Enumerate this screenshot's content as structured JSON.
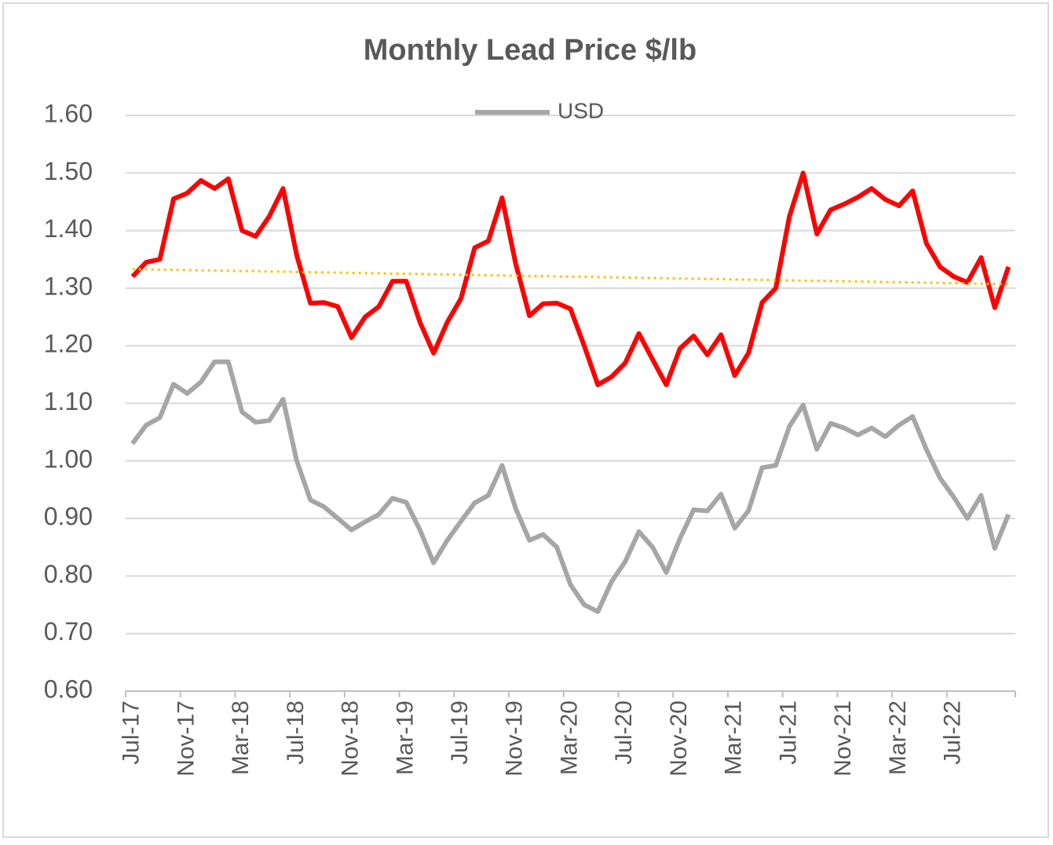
{
  "chart_data": {
    "type": "line",
    "title": "Monthly Lead Price $/lb",
    "categories": [
      "Jul-17",
      null,
      null,
      null,
      "Nov-17",
      null,
      null,
      null,
      "Mar-18",
      null,
      null,
      null,
      "Jul-18",
      null,
      null,
      null,
      "Nov-18",
      null,
      null,
      null,
      "Mar-19",
      null,
      null,
      null,
      "Jul-19",
      null,
      null,
      null,
      "Nov-19",
      null,
      null,
      null,
      "Mar-20",
      null,
      null,
      null,
      "Jul-20",
      null,
      null,
      null,
      "Nov-20",
      null,
      null,
      null,
      "Mar-21",
      null,
      null,
      null,
      "Jul-21",
      null,
      null,
      null,
      "Nov-21",
      null,
      null,
      null,
      "Mar-22",
      null,
      null,
      null,
      "Jul-22",
      null,
      null,
      null,
      null
    ],
    "series": [
      {
        "color": "#ff0000",
        "values": [
          1.32,
          1.345,
          1.35,
          1.455,
          1.465,
          1.487,
          1.473,
          1.49,
          1.4,
          1.39,
          1.425,
          1.473,
          1.357,
          1.274,
          1.275,
          1.268,
          1.214,
          1.25,
          1.268,
          1.312,
          1.312,
          1.241,
          1.187,
          1.241,
          1.282,
          1.37,
          1.382,
          1.457,
          1.342,
          1.252,
          1.273,
          1.274,
          1.264,
          1.2,
          1.132,
          1.146,
          1.17,
          1.221,
          1.176,
          1.132,
          1.195,
          1.217,
          1.184,
          1.219,
          1.148,
          1.187,
          1.275,
          1.3,
          1.425,
          1.5,
          1.394,
          1.436,
          1.446,
          1.458,
          1.473,
          1.454,
          1.443,
          1.469,
          1.378,
          1.337,
          1.32,
          1.31,
          1.353,
          1.266,
          1.337
        ]
      },
      {
        "name": "USD",
        "color": "#a6a6a6",
        "values": [
          1.03,
          1.062,
          1.075,
          1.133,
          1.117,
          1.137,
          1.172,
          1.172,
          1.085,
          1.067,
          1.07,
          1.107,
          1.0,
          0.932,
          0.92,
          0.9,
          0.88,
          0.894,
          0.907,
          0.935,
          0.928,
          0.88,
          0.823,
          0.862,
          0.895,
          0.927,
          0.94,
          0.992,
          0.917,
          0.862,
          0.872,
          0.85,
          0.785,
          0.75,
          0.738,
          0.79,
          0.825,
          0.877,
          0.85,
          0.806,
          0.865,
          0.915,
          0.913,
          0.942,
          0.883,
          0.913,
          0.988,
          0.992,
          1.06,
          1.097,
          1.02,
          1.065,
          1.057,
          1.045,
          1.057,
          1.042,
          1.062,
          1.077,
          1.02,
          0.97,
          0.937,
          0.9,
          0.94,
          0.848,
          0.907
        ]
      }
    ],
    "trendline": {
      "color": "#ffc000",
      "values": [
        1.333,
        1.307
      ]
    },
    "ylim": [
      0.6,
      1.6
    ],
    "yticks": [
      {
        "value": 0.6,
        "label": "0.60"
      },
      {
        "value": 0.7,
        "label": "0.70"
      },
      {
        "value": 0.8,
        "label": "0.80"
      },
      {
        "value": 0.9,
        "label": "0.90"
      },
      {
        "value": 1,
        "label": "1.00"
      },
      {
        "value": 1.1,
        "label": "1.10"
      },
      {
        "value": 1.2,
        "label": "1.20"
      },
      {
        "value": 1.3,
        "label": "1.30"
      },
      {
        "value": 1.4,
        "label": "1.40"
      },
      {
        "value": 1.5,
        "label": "1.50"
      },
      {
        "value": 1.6,
        "label": "1.60"
      }
    ],
    "grid": true,
    "legend": "top"
  }
}
